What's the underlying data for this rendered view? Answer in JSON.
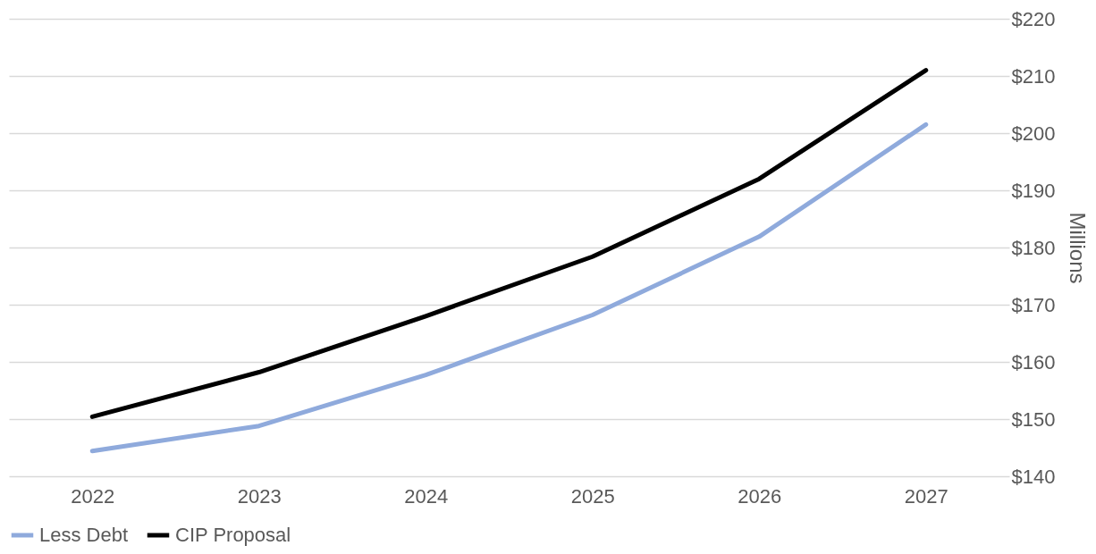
{
  "chart_data": {
    "type": "line",
    "categories": [
      "2022",
      "2023",
      "2024",
      "2025",
      "2026",
      "2027"
    ],
    "series": [
      {
        "name": "Less Debt",
        "color": "#8faadc",
        "values": [
          144.4,
          148.8,
          157.7,
          168.2,
          181.9,
          201.5
        ]
      },
      {
        "name": "CIP Proposal",
        "color": "#000000",
        "values": [
          150.4,
          158.2,
          168.0,
          178.4,
          192.0,
          211.0
        ]
      }
    ],
    "ylabel": "Millions",
    "ylim": [
      140,
      220
    ],
    "yticks": [
      {
        "value": 140,
        "label": "$140"
      },
      {
        "value": 150,
        "label": "$150"
      },
      {
        "value": 160,
        "label": "$160"
      },
      {
        "value": 170,
        "label": "$170"
      },
      {
        "value": 180,
        "label": "$180"
      },
      {
        "value": 190,
        "label": "$190"
      },
      {
        "value": 200,
        "label": "$200"
      },
      {
        "value": 210,
        "label": "$210"
      },
      {
        "value": 220,
        "label": "$220"
      }
    ],
    "grid": "y",
    "legend": "bottom",
    "marker": "none",
    "line_style": "solid"
  }
}
